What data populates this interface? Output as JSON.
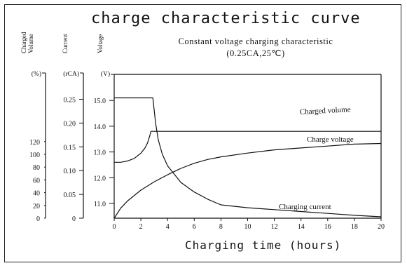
{
  "chart_data": {
    "type": "line",
    "title": "charge characteristic curve",
    "subtitle_line1": "Constant voltage charging characteristic",
    "subtitle_line2": "(0.25CA,25℃)",
    "xlabel": "Charging time (hours)",
    "xlim": [
      0,
      20
    ],
    "x_ticks": [
      0,
      2,
      4,
      6,
      8,
      10,
      12,
      14,
      16,
      18,
      20
    ],
    "axes": [
      {
        "name": "Charged Volume",
        "unit": "(%)",
        "lim": [
          0,
          140
        ],
        "ticks": [
          0,
          20,
          40,
          60,
          80,
          100,
          120
        ],
        "tick_labels": [
          "0",
          "20",
          "40",
          "60",
          "80",
          "100",
          "120"
        ]
      },
      {
        "name": "Current",
        "unit": "(rCA)",
        "lim": [
          0,
          0.3
        ],
        "ticks": [
          0,
          0.05,
          0.1,
          0.15,
          0.2,
          0.25
        ],
        "tick_labels": [
          "0",
          "0.05",
          "0.10",
          "0.15",
          "0.20",
          "0.25"
        ]
      },
      {
        "name": "Voltage",
        "unit": "(V)",
        "lim": [
          10.5,
          15.5
        ],
        "ticks": [
          11.0,
          12.0,
          13.0,
          14.0,
          15.0
        ],
        "tick_labels": [
          "11.0",
          "12.0",
          "13.0",
          "14.0",
          "15.0"
        ]
      }
    ],
    "series": [
      {
        "name": "Charged volume",
        "axis": "volume",
        "x": [
          0,
          0.5,
          1,
          2,
          3,
          4,
          5,
          6,
          7,
          8,
          10,
          12,
          14,
          16,
          18,
          20
        ],
        "y": [
          0,
          16,
          27,
          44,
          57,
          68,
          78,
          86,
          92,
          96,
          102,
          107,
          110,
          113,
          116,
          117
        ]
      },
      {
        "name": "Charge voltage",
        "axis": "voltage",
        "x": [
          0,
          0.5,
          1,
          1.5,
          2,
          2.3,
          2.5,
          2.65,
          2.75,
          2.8,
          5,
          10,
          15,
          20
        ],
        "y": [
          12.6,
          12.6,
          12.65,
          12.75,
          12.95,
          13.15,
          13.35,
          13.6,
          13.8,
          13.8,
          13.8,
          13.8,
          13.8,
          13.8
        ]
      },
      {
        "name": "Charging current",
        "axis": "current",
        "x": [
          0,
          1,
          2,
          2.9,
          3.1,
          3.3,
          3.6,
          4,
          5,
          6,
          7,
          8,
          10,
          12,
          14,
          16,
          18,
          20
        ],
        "y": [
          0.253,
          0.253,
          0.253,
          0.253,
          0.2,
          0.165,
          0.135,
          0.11,
          0.075,
          0.055,
          0.04,
          0.028,
          0.022,
          0.018,
          0.014,
          0.01,
          0.006,
          0.003
        ]
      }
    ],
    "annotations": [
      "Charged volume",
      "Charge voltage",
      "Charging current"
    ],
    "grid": false,
    "legend": "inline labels"
  }
}
